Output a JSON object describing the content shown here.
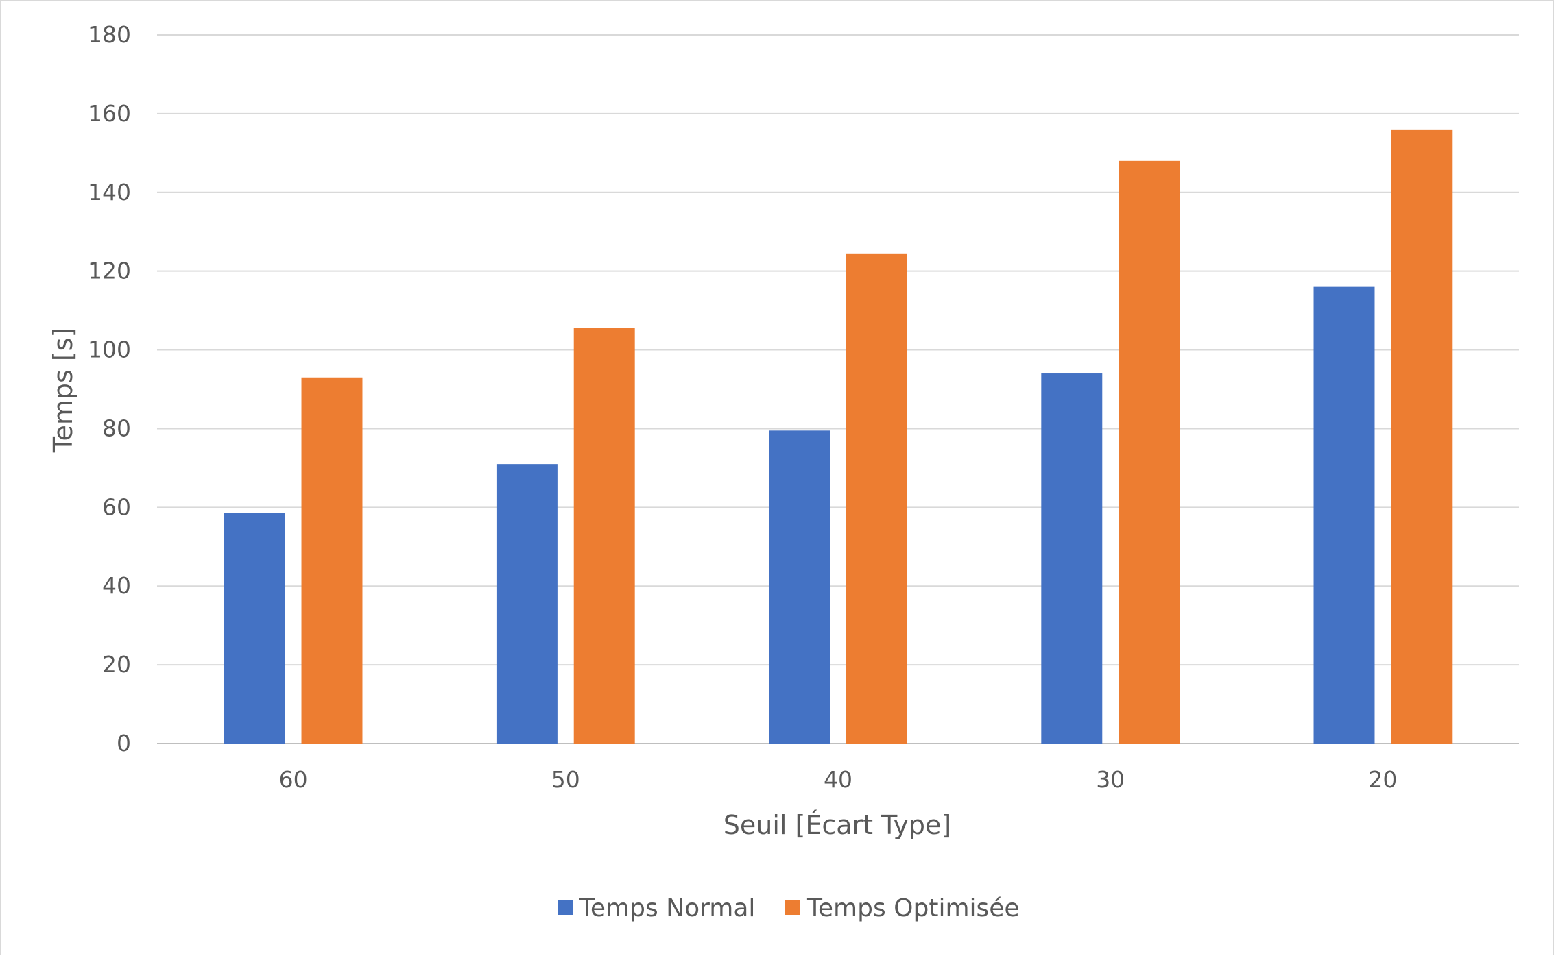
{
  "chart_data": {
    "type": "bar",
    "xlabel": "Seuil [Écart Type]",
    "ylabel": "Temps [s]",
    "categories": [
      "60",
      "50",
      "40",
      "30",
      "20"
    ],
    "series": [
      {
        "name": "Temps Normal",
        "color": "#4472C4",
        "values": [
          58.5,
          71,
          79.5,
          94,
          116
        ]
      },
      {
        "name": "Temps Optimisée",
        "color": "#ED7D31",
        "values": [
          93,
          105.5,
          124.5,
          148,
          156
        ]
      }
    ],
    "ylim": [
      0,
      180
    ],
    "yticks": [
      "0",
      "20",
      "40",
      "60",
      "80",
      "100",
      "120",
      "140",
      "160",
      "180"
    ],
    "grid": true,
    "legend_position": "bottom"
  }
}
